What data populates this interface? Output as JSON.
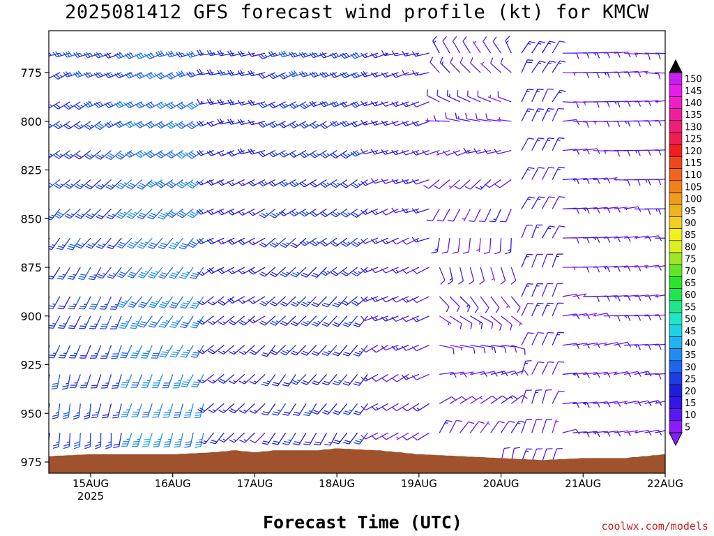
{
  "title": "2025081412 GFS forecast wind profile (kt) for KMCW",
  "credit": "coolwx.com/models",
  "chart_data": {
    "type": "wind_barb_profile",
    "title": "2025081412 GFS forecast wind profile (kt) for KMCW",
    "xlabel": "Forecast Time (UTC)",
    "ylabel": "",
    "x_ticks": [
      {
        "label": "15AUG",
        "sub": "2025",
        "hours": 12
      },
      {
        "label": "16AUG",
        "sub": "",
        "hours": 36
      },
      {
        "label": "17AUG",
        "sub": "",
        "hours": 60
      },
      {
        "label": "18AUG",
        "sub": "",
        "hours": 84
      },
      {
        "label": "19AUG",
        "sub": "",
        "hours": 108
      },
      {
        "label": "20AUG",
        "sub": "",
        "hours": 132
      },
      {
        "label": "21AUG",
        "sub": "",
        "hours": 156
      },
      {
        "label": "22AUG",
        "sub": "",
        "hours": 180
      }
    ],
    "xlim_hours": [
      0,
      180
    ],
    "y_ticks": [
      775,
      800,
      825,
      850,
      875,
      900,
      925,
      950,
      975
    ],
    "ylim": [
      760,
      980
    ],
    "pressure_levels": [
      765,
      775,
      790,
      800,
      815,
      830,
      845,
      860,
      875,
      890,
      900,
      915,
      930,
      945,
      960,
      975
    ],
    "colorbar": {
      "levels": [
        5,
        10,
        15,
        20,
        25,
        30,
        35,
        40,
        45,
        50,
        55,
        60,
        65,
        70,
        75,
        80,
        85,
        90,
        95,
        100,
        105,
        110,
        115,
        120,
        125,
        130,
        135,
        140,
        145,
        150
      ],
      "colors": [
        "#8a1cff",
        "#5a18f0",
        "#3414e6",
        "#1e1ed8",
        "#1e3ce6",
        "#1e64f0",
        "#1e8cf0",
        "#1eb4f0",
        "#1ed2e6",
        "#1ee6c8",
        "#1ee68c",
        "#1ee650",
        "#28e628",
        "#64e628",
        "#a0e628",
        "#dcf01e",
        "#f0f01e",
        "#f0d21e",
        "#f0b41e",
        "#f09a1e",
        "#f0821e",
        "#f0641e",
        "#f0461e",
        "#f01e1e",
        "#f01e50",
        "#f01e78",
        "#f01e9a",
        "#f01ec8",
        "#e61ee6",
        "#c81ef0"
      ]
    },
    "terrain_color": "#a0522d",
    "surface_pressure": [
      {
        "hours": 0,
        "p": 972
      },
      {
        "hours": 12,
        "p": 971
      },
      {
        "hours": 24,
        "p": 971
      },
      {
        "hours": 36,
        "p": 971
      },
      {
        "hours": 48,
        "p": 970
      },
      {
        "hours": 54,
        "p": 969
      },
      {
        "hours": 60,
        "p": 970
      },
      {
        "hours": 66,
        "p": 969
      },
      {
        "hours": 78,
        "p": 969
      },
      {
        "hours": 84,
        "p": 968
      },
      {
        "hours": 96,
        "p": 969
      },
      {
        "hours": 108,
        "p": 971
      },
      {
        "hours": 120,
        "p": 972
      },
      {
        "hours": 132,
        "p": 973
      },
      {
        "hours": 144,
        "p": 974
      },
      {
        "hours": 156,
        "p": 973
      },
      {
        "hours": 168,
        "p": 973
      },
      {
        "hours": 180,
        "p": 971
      }
    ],
    "barb_regimes": [
      {
        "hours_from": 0,
        "hours_to": 24,
        "dir_upper": 250,
        "speed_upper": 25,
        "dir_lower": 180,
        "speed_lower": 25
      },
      {
        "hours_from": 24,
        "hours_to": 48,
        "dir_upper": 250,
        "speed_upper": 30,
        "dir_lower": 190,
        "speed_lower": 35
      },
      {
        "hours_from": 48,
        "hours_to": 66,
        "dir_upper": 260,
        "speed_upper": 20,
        "dir_lower": 220,
        "speed_lower": 15
      },
      {
        "hours_from": 66,
        "hours_to": 96,
        "dir_upper": 250,
        "speed_upper": 25,
        "dir_lower": 210,
        "speed_lower": 20
      },
      {
        "hours_from": 96,
        "hours_to": 114,
        "dir_upper": 255,
        "speed_upper": 15,
        "dir_lower": 240,
        "speed_lower": 10
      },
      {
        "hours_from": 114,
        "hours_to": 138,
        "dir_upper": 330,
        "speed_upper": 10,
        "dir_lower": 10,
        "speed_lower": 10
      },
      {
        "hours_from": 138,
        "hours_to": 150,
        "dir_upper": 30,
        "speed_upper": 15,
        "dir_lower": 20,
        "speed_lower": 10
      },
      {
        "hours_from": 150,
        "hours_to": 180,
        "dir_upper": 90,
        "speed_upper": 10,
        "dir_lower": 80,
        "speed_lower": 10
      }
    ],
    "time_step_hours": 3
  }
}
